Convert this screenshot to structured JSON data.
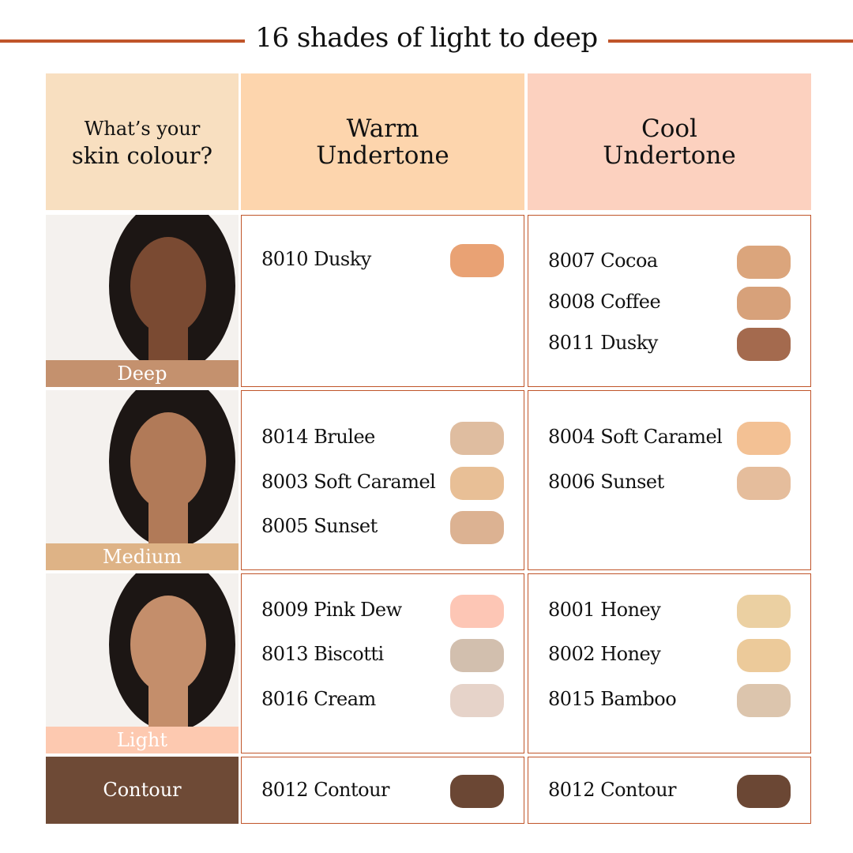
{
  "title": "16 shades of light to deep",
  "accent": "#c0552a",
  "headers": {
    "question_line1": "What’s your",
    "question_line2": "skin colour?",
    "warm_line1": "Warm",
    "warm_line2": "Undertone",
    "cool_line1": "Cool",
    "cool_line2": "Undertone"
  },
  "rows": [
    {
      "label": "Deep",
      "label_color": "#c4916e",
      "warm": [
        {
          "name": "8010 Dusky",
          "color": "#e9a274"
        }
      ],
      "cool": [
        {
          "name": "8007 Cocoa",
          "color": "#dba57c"
        },
        {
          "name": "8008 Coffee",
          "color": "#d7a17a"
        },
        {
          "name": "8011 Dusky",
          "color": "#a46a4e"
        }
      ]
    },
    {
      "label": "Medium",
      "label_color": "#deb386",
      "warm": [
        {
          "name": "8014 Brulee",
          "color": "#dfbda0"
        },
        {
          "name": "8003 Soft Caramel",
          "color": "#e8bf96"
        },
        {
          "name": "8005 Sunset",
          "color": "#dcb292"
        }
      ],
      "cool": [
        {
          "name": "8004 Soft Caramel",
          "color": "#f3c194"
        },
        {
          "name": "8006 Sunset",
          "color": "#e5bd9c"
        }
      ]
    },
    {
      "label": "Light",
      "label_color": "#fdc9b0",
      "warm": [
        {
          "name": "8009 Pink Dew",
          "color": "#fdc6b5"
        },
        {
          "name": "8013 Biscotti",
          "color": "#d2bfae"
        },
        {
          "name": "8016 Cream",
          "color": "#e6d3c9"
        }
      ],
      "cool": [
        {
          "name": "8001 Honey",
          "color": "#ebd0a2"
        },
        {
          "name": "8002 Honey",
          "color": "#ecca9a"
        },
        {
          "name": "8015 Bamboo",
          "color": "#dcc5ad"
        }
      ]
    },
    {
      "label": "Contour",
      "label_color": "#6e4a36",
      "warm": [
        {
          "name": "8012 Contour",
          "color": "#6b4734"
        }
      ],
      "cool": [
        {
          "name": "8012 Contour",
          "color": "#6b4734"
        }
      ]
    }
  ]
}
